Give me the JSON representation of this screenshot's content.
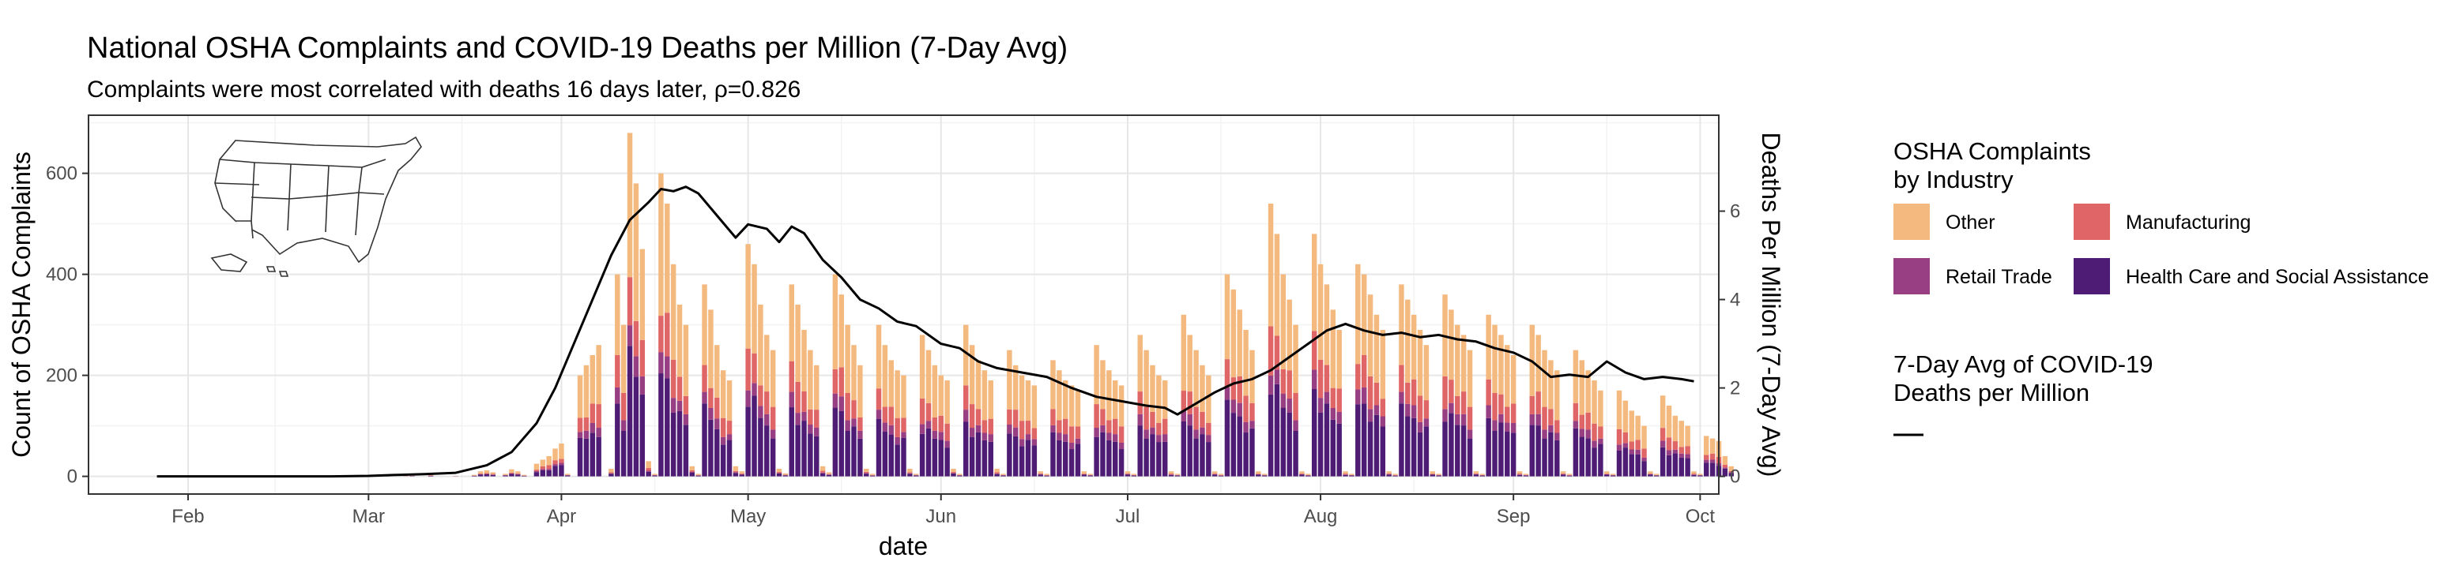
{
  "chart_data": {
    "type": "bar",
    "title": "National OSHA Complaints and COVID-19 Deaths per Million (7-Day Avg)",
    "subtitle": "Complaints were most correlated with deaths 16 days later, ρ=0.826",
    "xlabel": "date",
    "ylabel": "Count of OSHA Complaints",
    "ylabel_right": "Deaths Per Million (7-Day Avg)",
    "x_tick_labels": [
      "Feb",
      "Mar",
      "Apr",
      "May",
      "Jun",
      "Jul",
      "Aug",
      "Sep",
      "Oct"
    ],
    "y_ticks": [
      0,
      200,
      400,
      600
    ],
    "y_right_ticks": [
      0,
      2,
      4,
      6
    ],
    "ylim": [
      -35,
      715
    ],
    "ylim_right": [
      -0.4,
      8.17
    ],
    "xlim": [
      "2020-01-16",
      "2020-10-04"
    ],
    "grid": true,
    "stacked": true,
    "legend_placement": "right",
    "legend_fill_title": "OSHA Complaints\nby Industry",
    "legend_line_title": "7-Day Avg of COVID-19\nDeaths per Million",
    "series": [
      {
        "name": "Health Care and Social Assistance",
        "color": "#4e1c75"
      },
      {
        "name": "Retail Trade",
        "color": "#983e82"
      },
      {
        "name": "Manufacturing",
        "color": "#e06567"
      },
      {
        "name": "Other",
        "color": "#f4b97f"
      }
    ],
    "bars_start": "2020-01-28",
    "daily_totals": [
      0,
      0,
      0,
      0,
      0,
      0,
      0,
      0,
      0,
      0,
      0,
      0,
      0,
      0,
      0,
      0,
      0,
      0,
      0,
      0,
      0,
      0,
      0,
      0,
      0,
      0,
      0,
      0,
      0,
      0,
      0,
      1,
      0,
      0,
      0,
      0,
      2,
      0,
      0,
      1,
      2,
      0,
      0,
      3,
      0,
      0,
      0,
      1,
      0,
      0,
      3,
      10,
      12,
      8,
      0,
      5,
      14,
      10,
      3,
      0,
      25,
      33,
      40,
      55,
      65,
      5,
      0,
      200,
      220,
      240,
      260,
      0,
      15,
      400,
      300,
      680,
      580,
      450,
      30,
      5,
      600,
      540,
      420,
      340,
      300,
      20,
      5,
      380,
      330,
      260,
      210,
      190,
      20,
      10,
      460,
      420,
      340,
      280,
      250,
      15,
      6,
      380,
      340,
      290,
      250,
      220,
      20,
      8,
      400,
      360,
      300,
      260,
      220,
      15,
      5,
      300,
      260,
      230,
      210,
      200,
      15,
      5,
      280,
      250,
      220,
      200,
      190,
      15,
      5,
      300,
      260,
      230,
      210,
      190,
      15,
      5,
      250,
      220,
      200,
      190,
      180,
      10,
      5,
      230,
      210,
      190,
      180,
      170,
      10,
      5,
      260,
      230,
      210,
      190,
      180,
      10,
      5,
      280,
      250,
      220,
      200,
      190,
      10,
      5,
      320,
      280,
      250,
      220,
      200,
      10,
      5,
      400,
      370,
      330,
      290,
      250,
      10,
      5,
      540,
      480,
      400,
      350,
      300,
      10,
      5,
      480,
      420,
      380,
      330,
      290,
      10,
      5,
      420,
      400,
      360,
      320,
      290,
      10,
      5,
      380,
      350,
      320,
      290,
      260,
      10,
      5,
      360,
      330,
      300,
      280,
      250,
      10,
      5,
      320,
      300,
      280,
      260,
      240,
      10,
      5,
      300,
      280,
      250,
      230,
      210,
      10,
      5,
      250,
      230,
      210,
      190,
      170,
      10,
      5,
      170,
      150,
      130,
      120,
      100,
      10,
      5,
      160,
      140,
      120,
      110,
      100,
      10,
      5,
      80,
      75,
      70,
      40,
      20
    ],
    "line_points": [
      [
        "2020-01-27",
        0
      ],
      [
        "2020-02-10",
        0
      ],
      [
        "2020-02-24",
        0
      ],
      [
        "2020-03-01",
        0.01
      ],
      [
        "2020-03-05",
        0.03
      ],
      [
        "2020-03-10",
        0.05
      ],
      [
        "2020-03-15",
        0.08
      ],
      [
        "2020-03-20",
        0.25
      ],
      [
        "2020-03-24",
        0.55
      ],
      [
        "2020-03-28",
        1.2
      ],
      [
        "2020-03-31",
        2.0
      ],
      [
        "2020-04-03",
        3.0
      ],
      [
        "2020-04-06",
        4.0
      ],
      [
        "2020-04-09",
        5.0
      ],
      [
        "2020-04-12",
        5.8
      ],
      [
        "2020-04-15",
        6.2
      ],
      [
        "2020-04-17",
        6.5
      ],
      [
        "2020-04-19",
        6.45
      ],
      [
        "2020-04-21",
        6.55
      ],
      [
        "2020-04-23",
        6.4
      ],
      [
        "2020-04-26",
        5.9
      ],
      [
        "2020-04-29",
        5.4
      ],
      [
        "2020-05-01",
        5.7
      ],
      [
        "2020-05-04",
        5.6
      ],
      [
        "2020-05-06",
        5.3
      ],
      [
        "2020-05-08",
        5.65
      ],
      [
        "2020-05-10",
        5.5
      ],
      [
        "2020-05-13",
        4.9
      ],
      [
        "2020-05-16",
        4.5
      ],
      [
        "2020-05-19",
        4.0
      ],
      [
        "2020-05-22",
        3.8
      ],
      [
        "2020-05-25",
        3.5
      ],
      [
        "2020-05-28",
        3.4
      ],
      [
        "2020-06-01",
        3.0
      ],
      [
        "2020-06-04",
        2.9
      ],
      [
        "2020-06-07",
        2.6
      ],
      [
        "2020-06-10",
        2.45
      ],
      [
        "2020-06-14",
        2.35
      ],
      [
        "2020-06-18",
        2.25
      ],
      [
        "2020-06-22",
        2.0
      ],
      [
        "2020-06-26",
        1.8
      ],
      [
        "2020-06-30",
        1.7
      ],
      [
        "2020-07-04",
        1.6
      ],
      [
        "2020-07-07",
        1.55
      ],
      [
        "2020-07-09",
        1.4
      ],
      [
        "2020-07-12",
        1.65
      ],
      [
        "2020-07-15",
        1.9
      ],
      [
        "2020-07-18",
        2.1
      ],
      [
        "2020-07-21",
        2.2
      ],
      [
        "2020-07-24",
        2.4
      ],
      [
        "2020-07-27",
        2.7
      ],
      [
        "2020-07-30",
        3.0
      ],
      [
        "2020-08-02",
        3.3
      ],
      [
        "2020-08-05",
        3.45
      ],
      [
        "2020-08-08",
        3.3
      ],
      [
        "2020-08-11",
        3.2
      ],
      [
        "2020-08-14",
        3.25
      ],
      [
        "2020-08-17",
        3.15
      ],
      [
        "2020-08-20",
        3.2
      ],
      [
        "2020-08-23",
        3.1
      ],
      [
        "2020-08-26",
        3.05
      ],
      [
        "2020-08-29",
        2.9
      ],
      [
        "2020-09-01",
        2.8
      ],
      [
        "2020-09-04",
        2.6
      ],
      [
        "2020-09-07",
        2.25
      ],
      [
        "2020-09-10",
        2.3
      ],
      [
        "2020-09-13",
        2.25
      ],
      [
        "2020-09-16",
        2.6
      ],
      [
        "2020-09-19",
        2.35
      ],
      [
        "2020-09-22",
        2.2
      ],
      [
        "2020-09-25",
        2.25
      ],
      [
        "2020-09-28",
        2.2
      ],
      [
        "2020-09-30",
        2.15
      ]
    ],
    "line_color": "#000000"
  }
}
